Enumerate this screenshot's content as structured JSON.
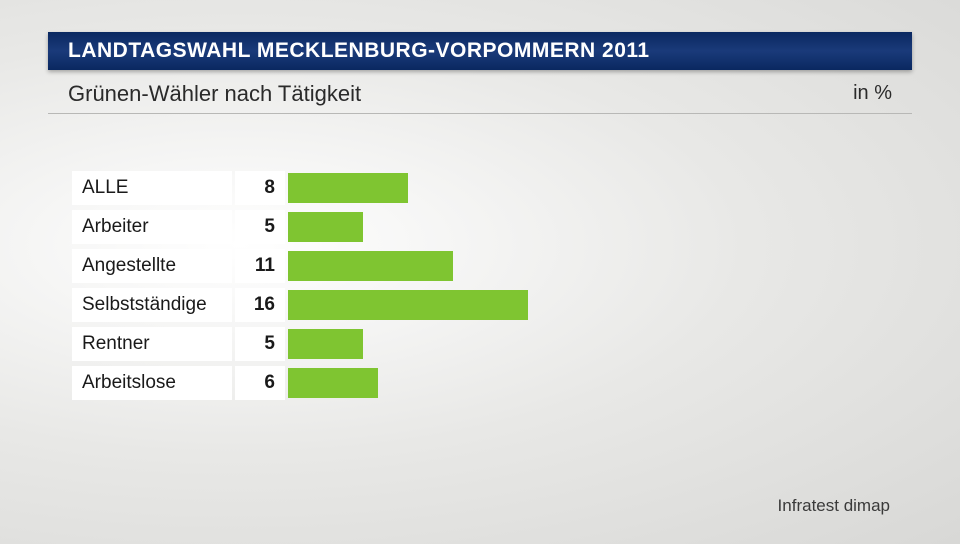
{
  "header": {
    "title": "LANDTAGSWAHL MECKLENBURG-VORPOMMERN 2011"
  },
  "subtitle": "Grünen-Wähler nach Tätigkeit",
  "unit": "in %",
  "chart": {
    "type": "bar",
    "orientation": "horizontal",
    "bar_color": "#7fc531",
    "background_color": "#ffffff",
    "max_value": 40,
    "bar_area_width": 600,
    "label_fontsize": 19,
    "value_fontsize": 19,
    "rows": [
      {
        "label": "ALLE",
        "value": 8
      },
      {
        "label": "Arbeiter",
        "value": 5
      },
      {
        "label": "Angestellte",
        "value": 11
      },
      {
        "label": "Selbstständige",
        "value": 16
      },
      {
        "label": "Rentner",
        "value": 5
      },
      {
        "label": "Arbeitslose",
        "value": 6
      }
    ]
  },
  "source": "Infratest dimap"
}
